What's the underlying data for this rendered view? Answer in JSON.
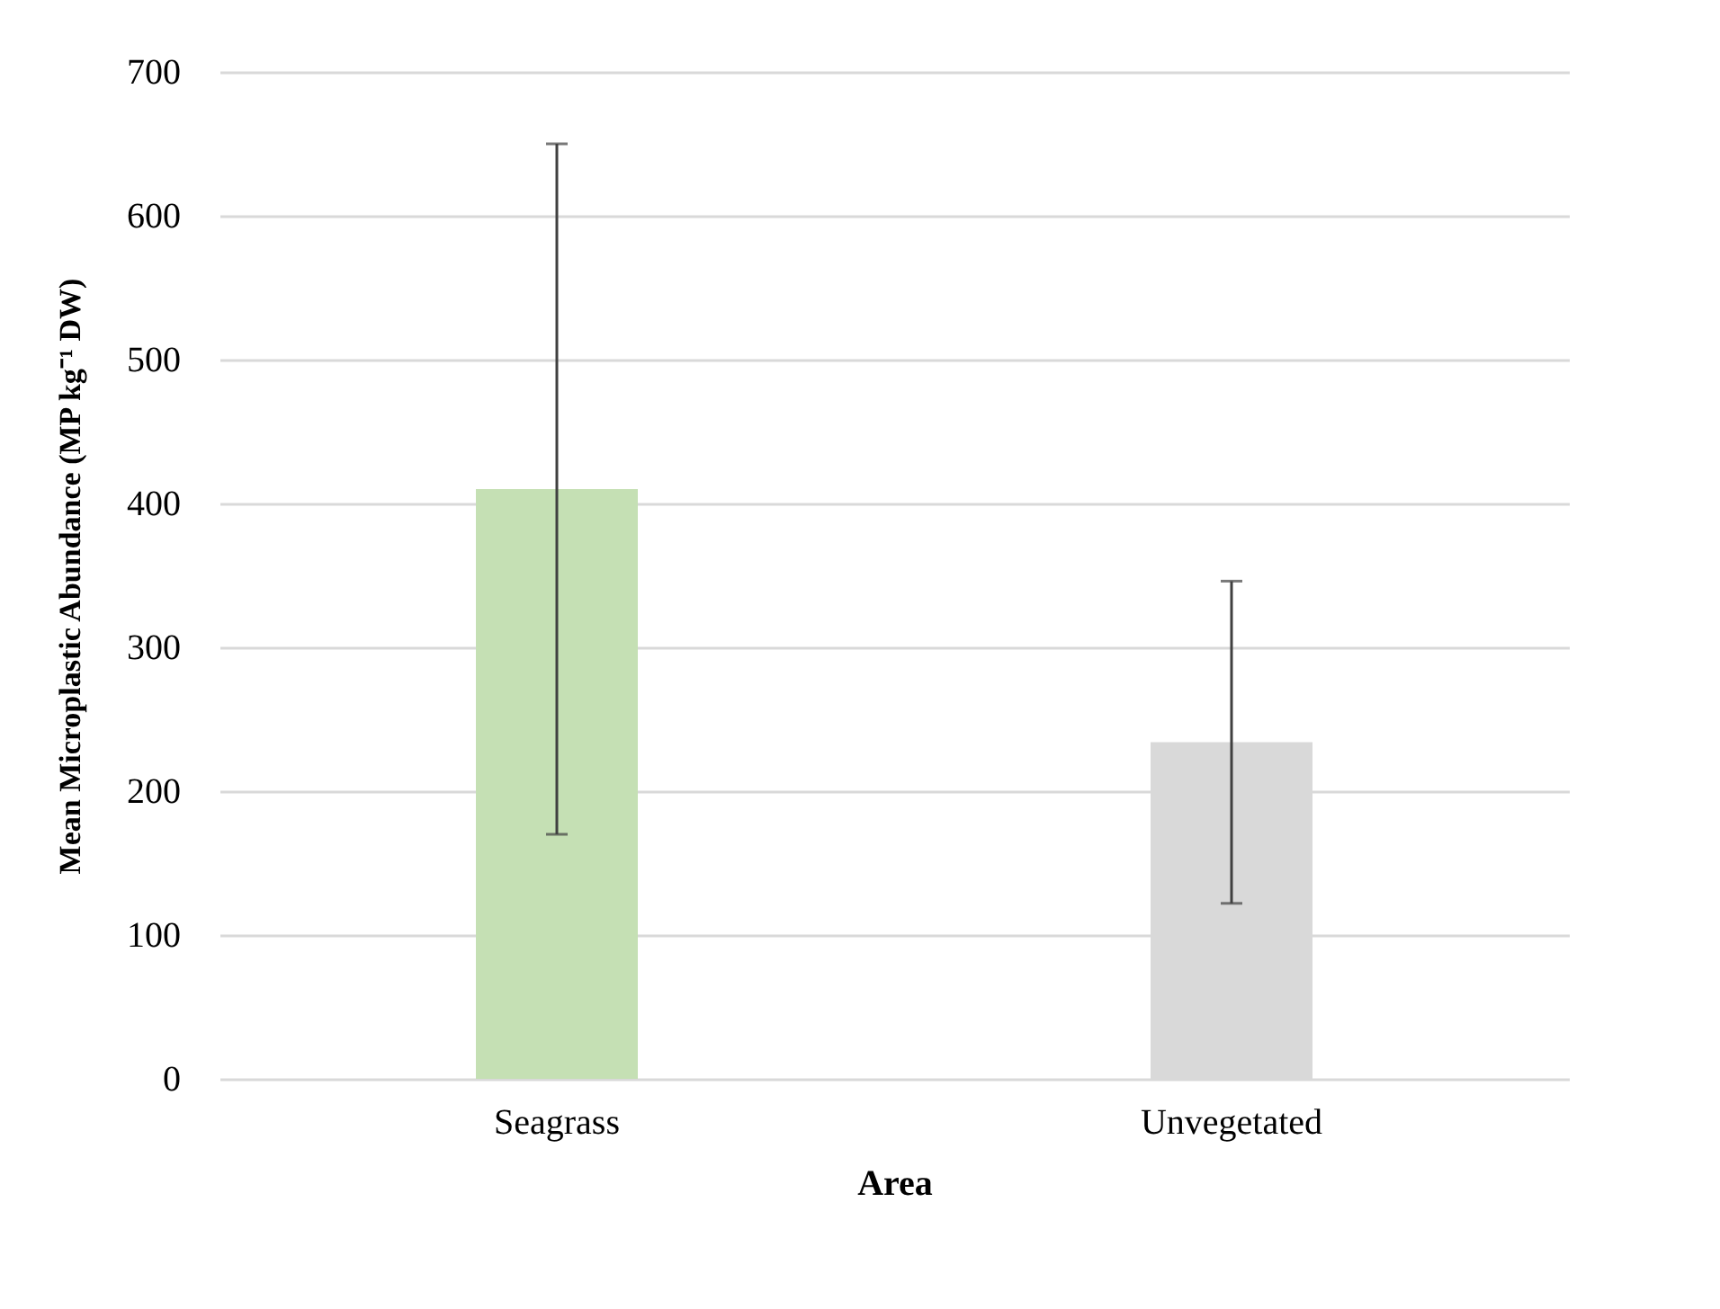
{
  "chart_data": {
    "type": "bar",
    "xlabel": "Area",
    "ylabel": "Mean Microplastic Abundance (MP kg⁻¹ DW)",
    "categories": [
      "Seagrass",
      "Unvegetated"
    ],
    "values": [
      410,
      234
    ],
    "colors": [
      "#c5e0b4",
      "#d9d9d9"
    ],
    "errors": [
      240,
      112
    ],
    "ylim": [
      0,
      700
    ],
    "yticks": [
      0,
      100,
      200,
      300,
      400,
      500,
      600,
      700
    ],
    "grid": "y"
  }
}
